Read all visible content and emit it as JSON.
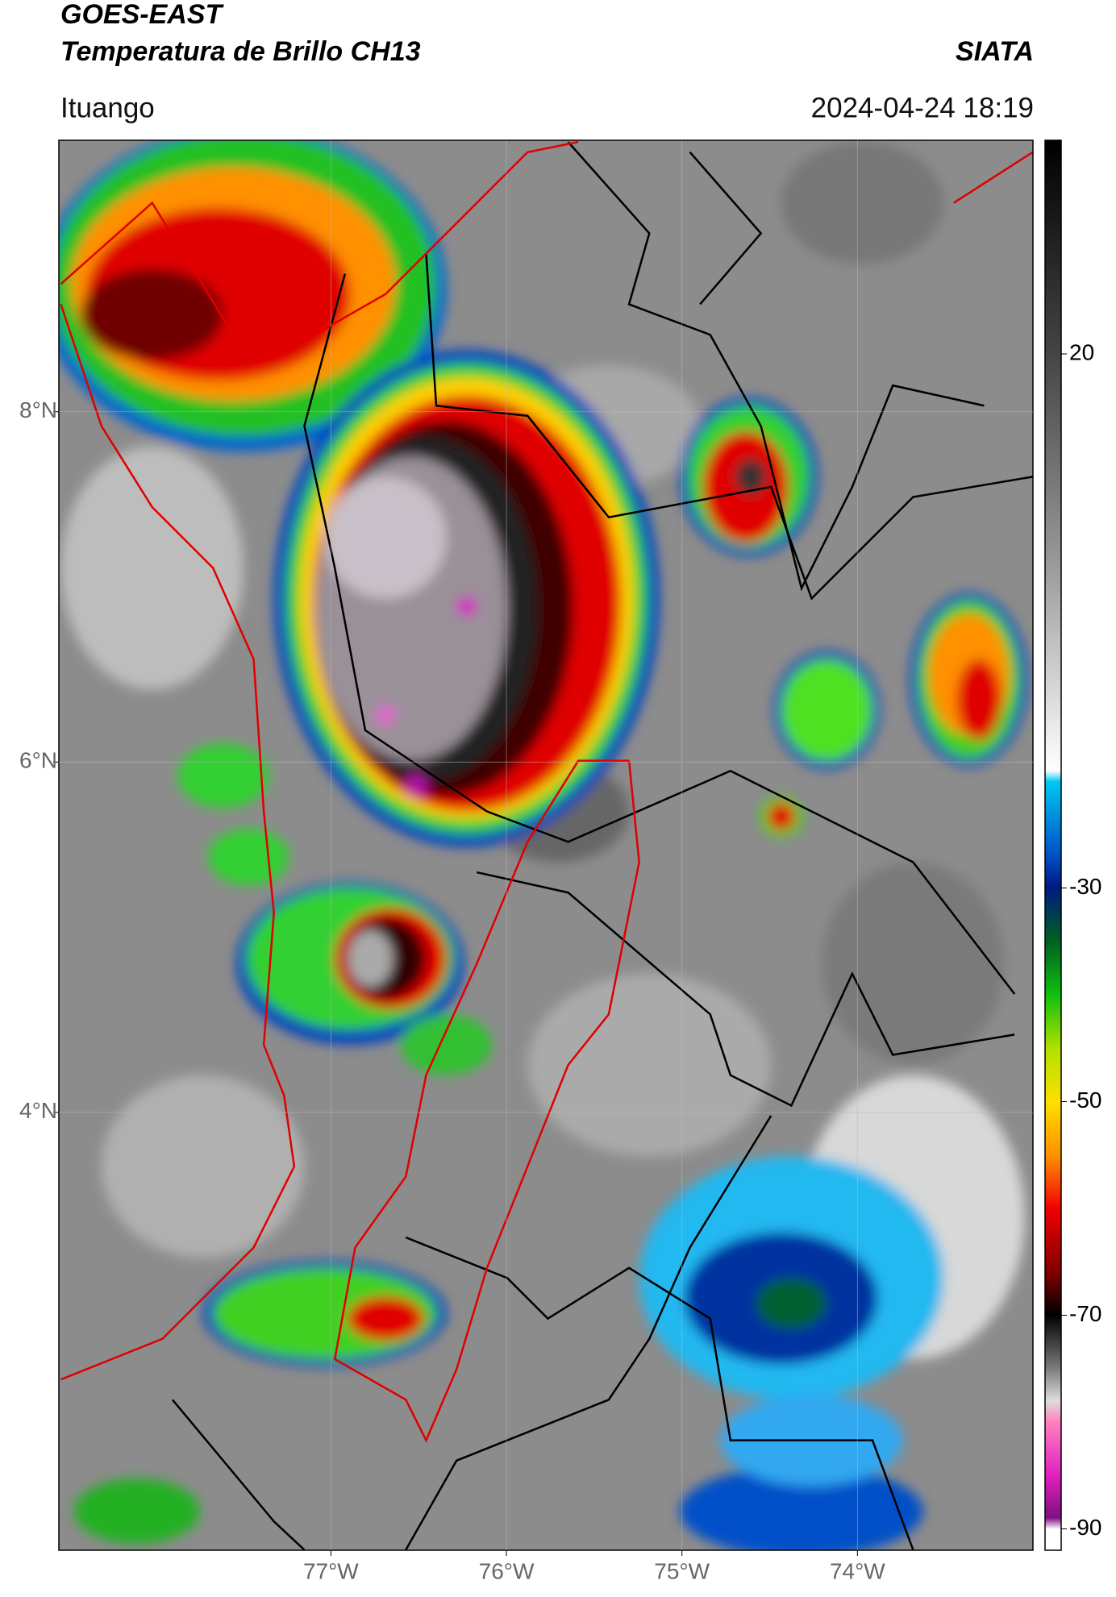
{
  "header": {
    "title": "GOES-EAST",
    "subtitle": "Temperatura de Brillo CH13",
    "source": "SIATA",
    "location": "Ituango",
    "datetime": "2024-04-24 18:19"
  },
  "map": {
    "xlim": [
      -78.55,
      -73.0
    ],
    "ylim": [
      1.5,
      9.55
    ],
    "xticks": [
      {
        "value": -77,
        "label": "77°W"
      },
      {
        "value": -76,
        "label": "76°W"
      },
      {
        "value": -75,
        "label": "75°W"
      },
      {
        "value": -74,
        "label": "74°W"
      }
    ],
    "yticks": [
      {
        "value": 8,
        "label": "8°N"
      },
      {
        "value": 6,
        "label": "6°N"
      },
      {
        "value": 4,
        "label": "4°N"
      }
    ],
    "grid": true
  },
  "colorbar": {
    "lim": [
      -92,
      40
    ],
    "ticks": [
      20,
      -30,
      -50,
      -70,
      -90
    ]
  }
}
